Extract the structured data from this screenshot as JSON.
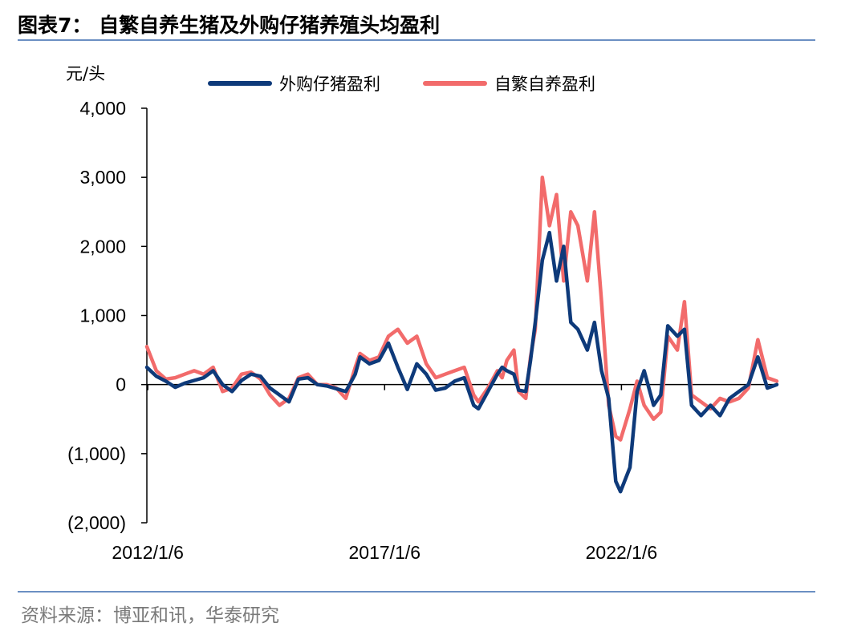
{
  "figure": {
    "title": "图表7：  自繁自养生猪及外购仔猪养殖头均盈利",
    "source": "资料来源：博亚和讯，华泰研究",
    "unit": "元/头"
  },
  "colors": {
    "purchased": "#0e3a7a",
    "self": "#f26b6b",
    "rule": "#6b8fc3"
  },
  "chart_data": {
    "type": "line",
    "title": "自繁自养生猪及外购仔猪养殖头均盈利",
    "xlabel": "",
    "ylabel": "元/头",
    "ylim": [
      -2000,
      4000
    ],
    "xlim": [
      2012.0,
      2025.3
    ],
    "y_ticks": [
      -2000,
      -1000,
      0,
      1000,
      2000,
      3000,
      4000
    ],
    "y_tick_labels": [
      "(2,000)",
      "(1,000)",
      "0",
      "1,000",
      "2,000",
      "3,000",
      "4,000"
    ],
    "x_ticks": [
      2012.02,
      2017.02,
      2022.02
    ],
    "x_tick_labels": [
      "2012/1/6",
      "2017/1/6",
      "2022/1/6"
    ],
    "legend": {
      "position": "top"
    },
    "series": [
      {
        "key": "purchased",
        "name": "外购仔猪盈利",
        "x": [
          2012.0,
          2012.2,
          2012.4,
          2012.6,
          2012.8,
          2013.0,
          2013.2,
          2013.4,
          2013.6,
          2013.8,
          2014.0,
          2014.2,
          2014.4,
          2014.6,
          2014.8,
          2015.0,
          2015.2,
          2015.4,
          2015.6,
          2015.8,
          2016.0,
          2016.2,
          2016.4,
          2016.5,
          2016.7,
          2016.9,
          2017.1,
          2017.3,
          2017.5,
          2017.7,
          2017.9,
          2018.1,
          2018.3,
          2018.5,
          2018.7,
          2018.9,
          2019.0,
          2019.2,
          2019.4,
          2019.5,
          2019.6,
          2019.75,
          2019.85,
          2020.0,
          2020.1,
          2020.2,
          2020.35,
          2020.5,
          2020.65,
          2020.8,
          2020.95,
          2021.1,
          2021.3,
          2021.45,
          2021.6,
          2021.75,
          2021.9,
          2022.0,
          2022.2,
          2022.35,
          2022.5,
          2022.7,
          2022.85,
          2023.0,
          2023.2,
          2023.35,
          2023.5,
          2023.7,
          2023.9,
          2024.1,
          2024.3,
          2024.5,
          2024.7,
          2024.9,
          2025.1,
          2025.3
        ],
        "y": [
          250,
          120,
          50,
          -40,
          20,
          60,
          100,
          200,
          0,
          -100,
          60,
          150,
          120,
          -50,
          -150,
          -250,
          80,
          100,
          0,
          -20,
          -60,
          -100,
          150,
          400,
          300,
          350,
          600,
          250,
          -70,
          300,
          150,
          -80,
          -50,
          50,
          100,
          -300,
          -350,
          -100,
          150,
          250,
          200,
          150,
          -80,
          -100,
          350,
          900,
          1800,
          2200,
          1500,
          2000,
          900,
          800,
          500,
          900,
          200,
          -200,
          -1400,
          -1550,
          -1200,
          -100,
          200,
          -300,
          -150,
          850,
          700,
          800,
          -300,
          -450,
          -300,
          -450,
          -200,
          -100,
          0,
          400,
          -50,
          0
        ]
      },
      {
        "key": "self",
        "name": "自繁自养盈利",
        "x": [
          2012.0,
          2012.2,
          2012.4,
          2012.6,
          2012.8,
          2013.0,
          2013.2,
          2013.4,
          2013.6,
          2013.8,
          2014.0,
          2014.2,
          2014.4,
          2014.6,
          2014.8,
          2015.0,
          2015.2,
          2015.4,
          2015.6,
          2015.8,
          2016.0,
          2016.2,
          2016.4,
          2016.5,
          2016.7,
          2016.9,
          2017.1,
          2017.3,
          2017.5,
          2017.7,
          2017.9,
          2018.1,
          2018.3,
          2018.5,
          2018.7,
          2018.9,
          2019.0,
          2019.2,
          2019.4,
          2019.5,
          2019.6,
          2019.75,
          2019.85,
          2020.0,
          2020.1,
          2020.2,
          2020.35,
          2020.5,
          2020.65,
          2020.8,
          2020.95,
          2021.1,
          2021.3,
          2021.45,
          2021.6,
          2021.75,
          2021.9,
          2022.0,
          2022.2,
          2022.35,
          2022.5,
          2022.7,
          2022.85,
          2023.0,
          2023.2,
          2023.35,
          2023.5,
          2023.7,
          2023.9,
          2024.1,
          2024.3,
          2024.5,
          2024.7,
          2024.9,
          2025.1,
          2025.3
        ],
        "y": [
          550,
          200,
          80,
          100,
          150,
          200,
          150,
          250,
          -100,
          -50,
          150,
          180,
          80,
          -150,
          -300,
          -200,
          100,
          150,
          0,
          0,
          -50,
          -200,
          250,
          450,
          350,
          400,
          700,
          800,
          600,
          700,
          300,
          100,
          150,
          200,
          250,
          -150,
          -250,
          -50,
          200,
          100,
          350,
          500,
          -100,
          -200,
          400,
          800,
          3000,
          2300,
          2750,
          1500,
          2500,
          2300,
          1500,
          2500,
          1200,
          -300,
          -750,
          -800,
          -350,
          50,
          -300,
          -500,
          -400,
          700,
          500,
          1200,
          -150,
          -250,
          -350,
          -200,
          -250,
          -200,
          -50,
          650,
          100,
          50
        ]
      }
    ]
  }
}
